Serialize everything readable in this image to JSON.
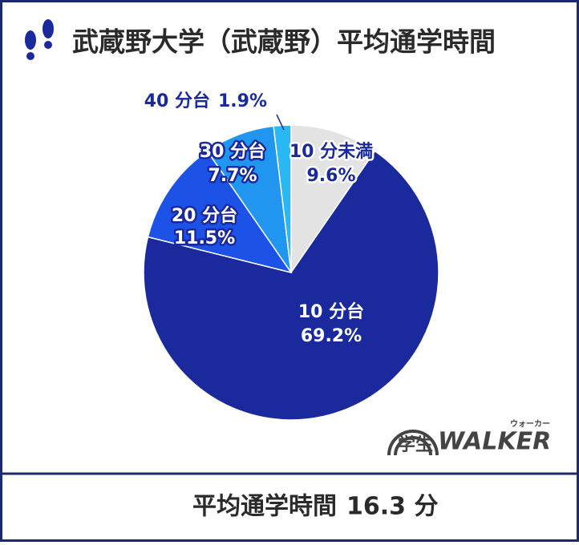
{
  "chart_data": {
    "type": "pie",
    "title": "武蔵野大学（武蔵野）平均通学時間",
    "categories": [
      "10 分未満",
      "10 分台",
      "20 分台",
      "30 分台",
      "40 分台"
    ],
    "values": [
      9.6,
      69.2,
      11.5,
      7.7,
      1.9
    ],
    "value_labels": [
      "9.6%",
      "69.2%",
      "11.5%",
      "7.7%",
      "1.9%"
    ],
    "colors": [
      "#e3e3e3",
      "#1a2a9c",
      "#1c52e6",
      "#2196f0",
      "#29b8f4"
    ],
    "summary_label": "平均通学時間",
    "summary_value": "16.3 分"
  },
  "logo": {
    "text": "学生",
    "brand": "WALKER",
    "ruby": "ウォーカー"
  }
}
